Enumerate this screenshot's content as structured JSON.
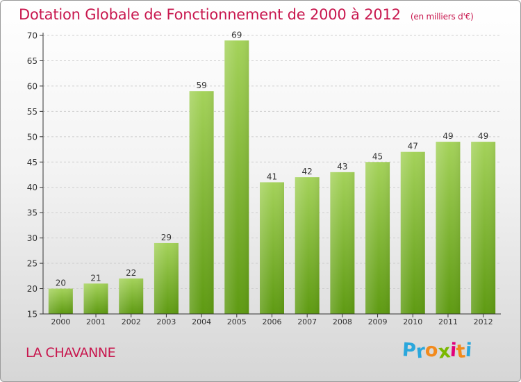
{
  "title": {
    "main": "Dotation Globale de Fonctionnement de 2000 à 2012",
    "unit": "(en milliers d'€)"
  },
  "place_name": "LA CHAVANNE",
  "logo": {
    "letters": [
      "P",
      "r",
      "o",
      "x",
      "i",
      "t",
      "i"
    ],
    "colors": [
      "#2aa7dc",
      "#2aa7dc",
      "#f28a1c",
      "#7ab800",
      "#e2007a",
      "#f28a1c",
      "#2aa7dc"
    ]
  },
  "colors": {
    "title": "#c8174e",
    "bar_top": "#a4d25a",
    "bar_bottom": "#5e9a12",
    "grid": "#cfcfcf",
    "axis": "#333333"
  },
  "chart_data": {
    "type": "bar",
    "categories": [
      "2000",
      "2001",
      "2002",
      "2003",
      "2004",
      "2005",
      "2006",
      "2007",
      "2008",
      "2009",
      "2010",
      "2011",
      "2012"
    ],
    "values": [
      20,
      21,
      22,
      29,
      59,
      69,
      41,
      42,
      43,
      45,
      47,
      49,
      49
    ],
    "ylim": [
      15,
      70
    ],
    "yticks": [
      15,
      20,
      25,
      30,
      35,
      40,
      45,
      50,
      55,
      60,
      65,
      70
    ],
    "grid": true
  }
}
